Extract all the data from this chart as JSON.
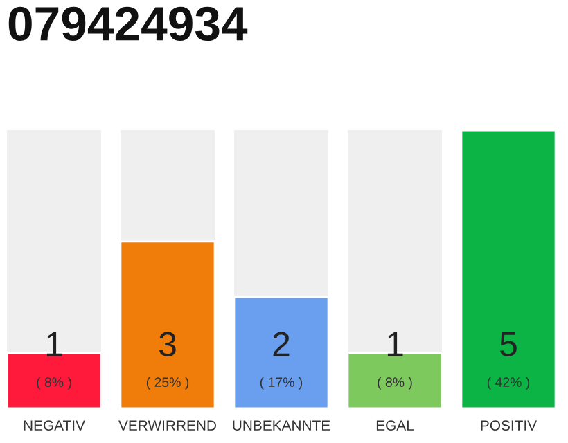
{
  "chart_data": {
    "type": "bar",
    "title": "079424934",
    "categories": [
      "NEGATIV",
      "VERWIRREND",
      "UNBEKANNTE",
      "EGAL",
      "POSITIV"
    ],
    "values": [
      1,
      3,
      2,
      1,
      5
    ],
    "colors": [
      "#ff1a3c",
      "#f07d0a",
      "#6a9fef",
      "#7ec95e",
      "#0cb446"
    ],
    "value_labels": [
      "1\n( 8% )",
      "3\n( 25% )",
      "2\n( 17% )",
      "1\n( 8% )",
      "5\n( 42% )"
    ],
    "ylim": [
      0,
      5
    ],
    "tick_labels": "x",
    "grid": false,
    "legend": false
  }
}
